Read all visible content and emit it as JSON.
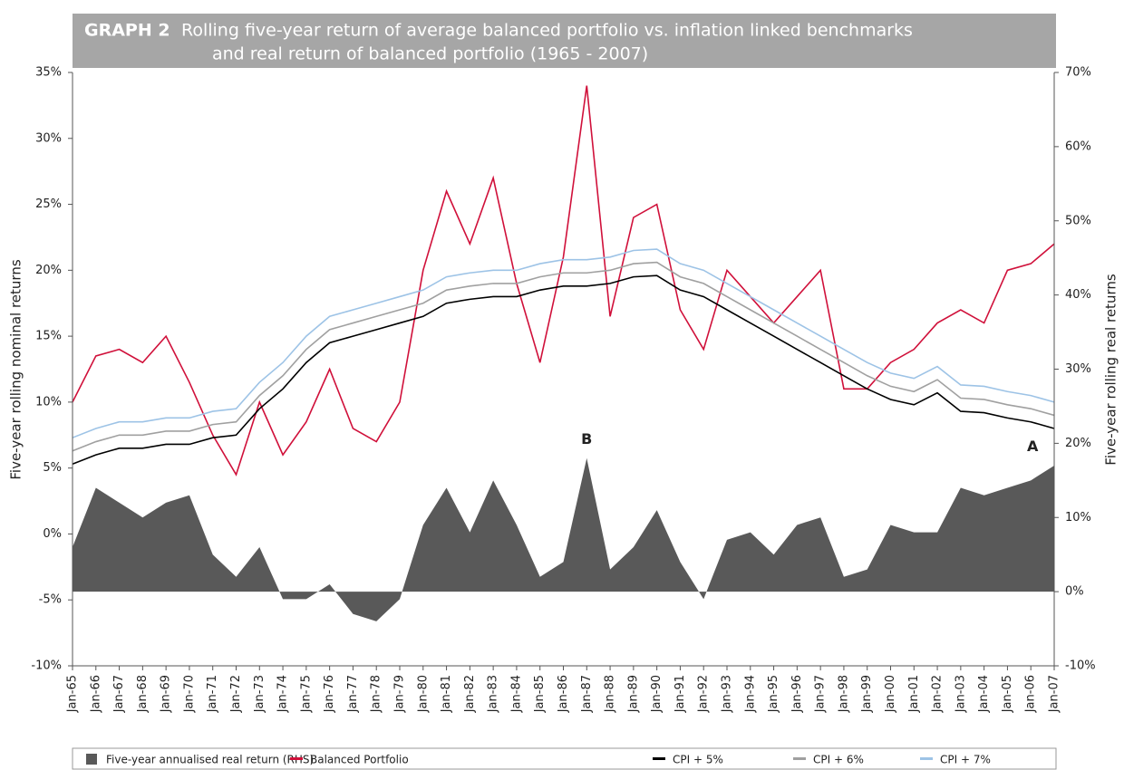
{
  "chart_data": {
    "type": "line",
    "title": "GRAPH 2",
    "title_lines": [
      "Rolling five-year return of average balanced portfolio vs. inflation linked benchmarks",
      "and real return of balanced portfolio (1965 - 2007)"
    ],
    "ylabel": "Five-year rolling nominal returns",
    "y2label": "Five-year rolling real returns",
    "categories": [
      "Jan-65",
      "Jan-66",
      "Jan-67",
      "Jan-68",
      "Jan-69",
      "Jan-70",
      "Jan-71",
      "Jan-72",
      "Jan-73",
      "Jan-74",
      "Jan-75",
      "Jan-76",
      "Jan-77",
      "Jan-78",
      "Jan-79",
      "Jan-80",
      "Jan-81",
      "Jan-82",
      "Jan-83",
      "Jan-84",
      "Jan-85",
      "Jan-86",
      "Jan-87",
      "Jan-88",
      "Jan-89",
      "Jan-90",
      "Jan-91",
      "Jan-92",
      "Jan-93",
      "Jan-94",
      "Jan-95",
      "Jan-96",
      "Jan-97",
      "Jan-98",
      "Jan-99",
      "Jan-00",
      "Jan-01",
      "Jan-02",
      "Jan-03",
      "Jan-04",
      "Jan-05",
      "Jan-06",
      "Jan-07"
    ],
    "series": [
      {
        "name": "Five-year annualised real return (RHS)",
        "type": "area",
        "axis": "y2",
        "color": "#595959",
        "values": [
          6,
          14,
          12,
          10,
          12,
          13,
          5,
          2,
          6,
          -1,
          -1,
          1,
          -3,
          -4,
          -1,
          9,
          14,
          8,
          15,
          9,
          2,
          4,
          18,
          3,
          6,
          11,
          4,
          -1,
          7,
          8,
          5,
          9,
          10,
          2,
          3,
          9,
          8,
          8,
          14,
          13,
          14,
          15,
          17
        ]
      },
      {
        "name": "Balanced Portfolio",
        "type": "line",
        "color": "#d0103a",
        "values": [
          10,
          13.5,
          14,
          13,
          15,
          11.5,
          7.5,
          4.5,
          10,
          6,
          8.5,
          12.5,
          8,
          7,
          10,
          20,
          26,
          22,
          27,
          19,
          13,
          21,
          34,
          16.5,
          24,
          25,
          17,
          14,
          20,
          18,
          16,
          18,
          20,
          11,
          11,
          13,
          14,
          16,
          17,
          16,
          20,
          20.5,
          22
        ]
      },
      {
        "name": "CPI + 5%",
        "type": "line",
        "color": "#000000",
        "values": [
          5.3,
          6,
          6.5,
          6.5,
          6.8,
          6.8,
          7.3,
          7.5,
          9.5,
          11,
          13,
          14.5,
          15,
          15.5,
          16,
          16.5,
          17.5,
          17.8,
          18,
          18,
          18.5,
          18.8,
          18.8,
          19,
          19.5,
          19.6,
          18.5,
          18,
          17,
          16,
          15,
          14,
          13,
          12,
          11,
          10.2,
          9.8,
          10.7,
          9.3,
          9.2,
          8.8,
          8.5,
          8
        ]
      },
      {
        "name": "CPI + 6%",
        "type": "line",
        "color": "#a0a0a0",
        "values": [
          6.3,
          7,
          7.5,
          7.5,
          7.8,
          7.8,
          8.3,
          8.5,
          10.5,
          12,
          14,
          15.5,
          16,
          16.5,
          17,
          17.5,
          18.5,
          18.8,
          19,
          19,
          19.5,
          19.8,
          19.8,
          20,
          20.5,
          20.6,
          19.5,
          19,
          18,
          17,
          16,
          15,
          14,
          13,
          12,
          11.2,
          10.8,
          11.7,
          10.3,
          10.2,
          9.8,
          9.5,
          9
        ]
      },
      {
        "name": "CPI + 7%",
        "type": "line",
        "color": "#9dc3e6",
        "values": [
          7.3,
          8,
          8.5,
          8.5,
          8.8,
          8.8,
          9.3,
          9.5,
          11.5,
          13,
          15,
          16.5,
          17,
          17.5,
          18,
          18.5,
          19.5,
          19.8,
          20,
          20,
          20.5,
          20.8,
          20.8,
          21,
          21.5,
          21.6,
          20.5,
          20,
          19,
          18,
          17,
          16,
          15,
          14,
          13,
          12.2,
          11.8,
          12.7,
          11.3,
          11.2,
          10.8,
          10.5,
          10
        ]
      }
    ],
    "annotations": [
      {
        "text": "B",
        "x": "Jan-87",
        "y2": 20.5
      },
      {
        "text": "A",
        "x": "Jan-06",
        "y2": 19.5
      }
    ],
    "ylim": [
      -10,
      35
    ],
    "yticks": [
      {
        "value": -10,
        "label": "-10%"
      },
      {
        "value": -5,
        "label": "-5%"
      },
      {
        "value": 0,
        "label": "0%"
      },
      {
        "value": 5,
        "label": "5%"
      },
      {
        "value": 10,
        "label": "10%"
      },
      {
        "value": 15,
        "label": "15%"
      },
      {
        "value": 20,
        "label": "20%"
      },
      {
        "value": 25,
        "label": "25%"
      },
      {
        "value": 30,
        "label": "30%"
      },
      {
        "value": 35,
        "label": "35%"
      }
    ],
    "y2lim": [
      -10,
      70
    ],
    "y2ticks": [
      {
        "value": -10,
        "label": "-10%"
      },
      {
        "value": 0,
        "label": "0%"
      },
      {
        "value": 10,
        "label": "10%"
      },
      {
        "value": 20,
        "label": "20%"
      },
      {
        "value": 30,
        "label": "30%"
      },
      {
        "value": 40,
        "label": "40%"
      },
      {
        "value": 50,
        "label": "50%"
      },
      {
        "value": 60,
        "label": "60%"
      },
      {
        "value": 70,
        "label": "70%"
      }
    ],
    "grid": false,
    "legend": "bottom"
  }
}
